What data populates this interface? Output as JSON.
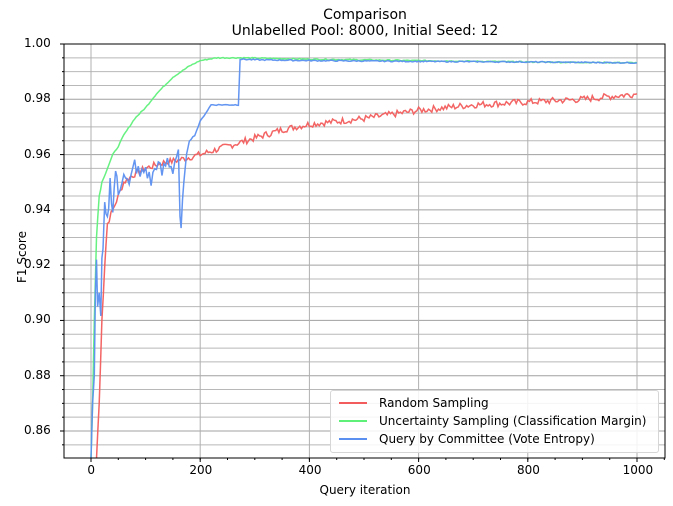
{
  "chart_data": {
    "type": "line",
    "title": "Comparison",
    "subtitle": "Unlabelled Pool: 8000, Initial Seed: 12",
    "xlabel": "Query iteration",
    "ylabel": "F1 Score",
    "xlim": [
      -50,
      1050
    ],
    "ylim": [
      0.85,
      1.0
    ],
    "xticks": [
      "0",
      "200",
      "400",
      "600",
      "800",
      "1000"
    ],
    "yticks": [
      "0.86",
      "0.88",
      "0.90",
      "0.92",
      "0.94",
      "0.96",
      "0.98",
      "1.00"
    ],
    "grid": true,
    "legend_position": "lower right",
    "series": [
      {
        "name": "Random Sampling",
        "color": "#f25c5c",
        "x": [
          0,
          10,
          15,
          20,
          25,
          30,
          40,
          50,
          60,
          80,
          100,
          130,
          160,
          200,
          250,
          300,
          350,
          400,
          500,
          600,
          700,
          800,
          900,
          1000
        ],
        "y": [
          0.85,
          0.85,
          0.87,
          0.9,
          0.92,
          0.935,
          0.94,
          0.945,
          0.95,
          0.953,
          0.955,
          0.957,
          0.958,
          0.96,
          0.963,
          0.966,
          0.969,
          0.971,
          0.973,
          0.976,
          0.978,
          0.979,
          0.98,
          0.982
        ]
      },
      {
        "name": "Uncertainty Sampling (Classification Margin)",
        "color": "#5ff07a",
        "x": [
          0,
          3,
          6,
          10,
          15,
          20,
          30,
          40,
          50,
          60,
          80,
          100,
          120,
          150,
          180,
          200,
          230,
          260,
          280,
          400,
          600,
          800,
          1000
        ],
        "y": [
          0.85,
          0.87,
          0.9,
          0.93,
          0.945,
          0.95,
          0.955,
          0.96,
          0.963,
          0.967,
          0.973,
          0.977,
          0.982,
          0.988,
          0.992,
          0.994,
          0.995,
          0.995,
          0.995,
          0.9945,
          0.994,
          0.9935,
          0.9932
        ]
      },
      {
        "name": "Query by Committee (Vote Entropy)",
        "color": "#5b8ff0",
        "x": [
          0,
          3,
          6,
          8,
          10,
          12,
          15,
          18,
          20,
          22,
          25,
          30,
          35,
          40,
          45,
          50,
          60,
          70,
          80,
          90,
          100,
          110,
          120,
          130,
          140,
          150,
          160,
          163,
          165,
          170,
          175,
          180,
          190,
          200,
          210,
          220,
          230,
          240,
          250,
          270,
          273,
          276,
          300,
          400,
          600,
          800,
          1000
        ],
        "y": [
          0.85,
          0.87,
          0.88,
          0.91,
          0.922,
          0.905,
          0.91,
          0.903,
          0.92,
          0.925,
          0.94,
          0.935,
          0.95,
          0.94,
          0.955,
          0.945,
          0.955,
          0.948,
          0.957,
          0.952,
          0.955,
          0.95,
          0.957,
          0.953,
          0.958,
          0.955,
          0.962,
          0.935,
          0.932,
          0.95,
          0.96,
          0.965,
          0.967,
          0.972,
          0.975,
          0.978,
          0.978,
          0.978,
          0.978,
          0.978,
          0.9945,
          0.9945,
          0.9943,
          0.994,
          0.9937,
          0.9935,
          0.9932
        ]
      }
    ]
  },
  "legend": {
    "items": [
      {
        "label": "Random Sampling",
        "color": "#f25c5c"
      },
      {
        "label": "Uncertainty Sampling (Classification Margin)",
        "color": "#5ff07a"
      },
      {
        "label": "Query by Committee (Vote Entropy)",
        "color": "#5b8ff0"
      }
    ]
  }
}
